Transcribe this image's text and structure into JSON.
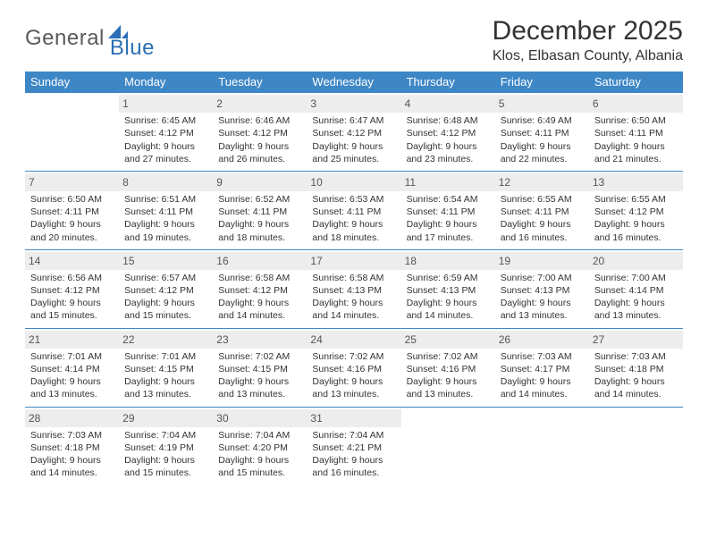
{
  "logo": {
    "word1": "General",
    "word2": "Blue",
    "brand_color": "#2a6fb5",
    "text_color": "#5a5a5a"
  },
  "title": "December 2025",
  "location": "Klos, Elbasan County, Albania",
  "colors": {
    "header_bg": "#3e87c6",
    "header_text": "#ffffff",
    "daynum_bg": "#ededed",
    "row_border": "#3e87c6",
    "body_text": "#333333",
    "page_bg": "#ffffff"
  },
  "typography": {
    "title_fontsize": 30,
    "location_fontsize": 16,
    "header_fontsize": 13,
    "cell_fontsize": 10.5,
    "daynum_fontsize": 12
  },
  "day_labels": [
    "Sunday",
    "Monday",
    "Tuesday",
    "Wednesday",
    "Thursday",
    "Friday",
    "Saturday"
  ],
  "weeks": [
    [
      {
        "num": "",
        "sunrise": "",
        "sunset": "",
        "daylight1": "",
        "daylight2": ""
      },
      {
        "num": "1",
        "sunrise": "Sunrise: 6:45 AM",
        "sunset": "Sunset: 4:12 PM",
        "daylight1": "Daylight: 9 hours",
        "daylight2": "and 27 minutes."
      },
      {
        "num": "2",
        "sunrise": "Sunrise: 6:46 AM",
        "sunset": "Sunset: 4:12 PM",
        "daylight1": "Daylight: 9 hours",
        "daylight2": "and 26 minutes."
      },
      {
        "num": "3",
        "sunrise": "Sunrise: 6:47 AM",
        "sunset": "Sunset: 4:12 PM",
        "daylight1": "Daylight: 9 hours",
        "daylight2": "and 25 minutes."
      },
      {
        "num": "4",
        "sunrise": "Sunrise: 6:48 AM",
        "sunset": "Sunset: 4:12 PM",
        "daylight1": "Daylight: 9 hours",
        "daylight2": "and 23 minutes."
      },
      {
        "num": "5",
        "sunrise": "Sunrise: 6:49 AM",
        "sunset": "Sunset: 4:11 PM",
        "daylight1": "Daylight: 9 hours",
        "daylight2": "and 22 minutes."
      },
      {
        "num": "6",
        "sunrise": "Sunrise: 6:50 AM",
        "sunset": "Sunset: 4:11 PM",
        "daylight1": "Daylight: 9 hours",
        "daylight2": "and 21 minutes."
      }
    ],
    [
      {
        "num": "7",
        "sunrise": "Sunrise: 6:50 AM",
        "sunset": "Sunset: 4:11 PM",
        "daylight1": "Daylight: 9 hours",
        "daylight2": "and 20 minutes."
      },
      {
        "num": "8",
        "sunrise": "Sunrise: 6:51 AM",
        "sunset": "Sunset: 4:11 PM",
        "daylight1": "Daylight: 9 hours",
        "daylight2": "and 19 minutes."
      },
      {
        "num": "9",
        "sunrise": "Sunrise: 6:52 AM",
        "sunset": "Sunset: 4:11 PM",
        "daylight1": "Daylight: 9 hours",
        "daylight2": "and 18 minutes."
      },
      {
        "num": "10",
        "sunrise": "Sunrise: 6:53 AM",
        "sunset": "Sunset: 4:11 PM",
        "daylight1": "Daylight: 9 hours",
        "daylight2": "and 18 minutes."
      },
      {
        "num": "11",
        "sunrise": "Sunrise: 6:54 AM",
        "sunset": "Sunset: 4:11 PM",
        "daylight1": "Daylight: 9 hours",
        "daylight2": "and 17 minutes."
      },
      {
        "num": "12",
        "sunrise": "Sunrise: 6:55 AM",
        "sunset": "Sunset: 4:11 PM",
        "daylight1": "Daylight: 9 hours",
        "daylight2": "and 16 minutes."
      },
      {
        "num": "13",
        "sunrise": "Sunrise: 6:55 AM",
        "sunset": "Sunset: 4:12 PM",
        "daylight1": "Daylight: 9 hours",
        "daylight2": "and 16 minutes."
      }
    ],
    [
      {
        "num": "14",
        "sunrise": "Sunrise: 6:56 AM",
        "sunset": "Sunset: 4:12 PM",
        "daylight1": "Daylight: 9 hours",
        "daylight2": "and 15 minutes."
      },
      {
        "num": "15",
        "sunrise": "Sunrise: 6:57 AM",
        "sunset": "Sunset: 4:12 PM",
        "daylight1": "Daylight: 9 hours",
        "daylight2": "and 15 minutes."
      },
      {
        "num": "16",
        "sunrise": "Sunrise: 6:58 AM",
        "sunset": "Sunset: 4:12 PM",
        "daylight1": "Daylight: 9 hours",
        "daylight2": "and 14 minutes."
      },
      {
        "num": "17",
        "sunrise": "Sunrise: 6:58 AM",
        "sunset": "Sunset: 4:13 PM",
        "daylight1": "Daylight: 9 hours",
        "daylight2": "and 14 minutes."
      },
      {
        "num": "18",
        "sunrise": "Sunrise: 6:59 AM",
        "sunset": "Sunset: 4:13 PM",
        "daylight1": "Daylight: 9 hours",
        "daylight2": "and 14 minutes."
      },
      {
        "num": "19",
        "sunrise": "Sunrise: 7:00 AM",
        "sunset": "Sunset: 4:13 PM",
        "daylight1": "Daylight: 9 hours",
        "daylight2": "and 13 minutes."
      },
      {
        "num": "20",
        "sunrise": "Sunrise: 7:00 AM",
        "sunset": "Sunset: 4:14 PM",
        "daylight1": "Daylight: 9 hours",
        "daylight2": "and 13 minutes."
      }
    ],
    [
      {
        "num": "21",
        "sunrise": "Sunrise: 7:01 AM",
        "sunset": "Sunset: 4:14 PM",
        "daylight1": "Daylight: 9 hours",
        "daylight2": "and 13 minutes."
      },
      {
        "num": "22",
        "sunrise": "Sunrise: 7:01 AM",
        "sunset": "Sunset: 4:15 PM",
        "daylight1": "Daylight: 9 hours",
        "daylight2": "and 13 minutes."
      },
      {
        "num": "23",
        "sunrise": "Sunrise: 7:02 AM",
        "sunset": "Sunset: 4:15 PM",
        "daylight1": "Daylight: 9 hours",
        "daylight2": "and 13 minutes."
      },
      {
        "num": "24",
        "sunrise": "Sunrise: 7:02 AM",
        "sunset": "Sunset: 4:16 PM",
        "daylight1": "Daylight: 9 hours",
        "daylight2": "and 13 minutes."
      },
      {
        "num": "25",
        "sunrise": "Sunrise: 7:02 AM",
        "sunset": "Sunset: 4:16 PM",
        "daylight1": "Daylight: 9 hours",
        "daylight2": "and 13 minutes."
      },
      {
        "num": "26",
        "sunrise": "Sunrise: 7:03 AM",
        "sunset": "Sunset: 4:17 PM",
        "daylight1": "Daylight: 9 hours",
        "daylight2": "and 14 minutes."
      },
      {
        "num": "27",
        "sunrise": "Sunrise: 7:03 AM",
        "sunset": "Sunset: 4:18 PM",
        "daylight1": "Daylight: 9 hours",
        "daylight2": "and 14 minutes."
      }
    ],
    [
      {
        "num": "28",
        "sunrise": "Sunrise: 7:03 AM",
        "sunset": "Sunset: 4:18 PM",
        "daylight1": "Daylight: 9 hours",
        "daylight2": "and 14 minutes."
      },
      {
        "num": "29",
        "sunrise": "Sunrise: 7:04 AM",
        "sunset": "Sunset: 4:19 PM",
        "daylight1": "Daylight: 9 hours",
        "daylight2": "and 15 minutes."
      },
      {
        "num": "30",
        "sunrise": "Sunrise: 7:04 AM",
        "sunset": "Sunset: 4:20 PM",
        "daylight1": "Daylight: 9 hours",
        "daylight2": "and 15 minutes."
      },
      {
        "num": "31",
        "sunrise": "Sunrise: 7:04 AM",
        "sunset": "Sunset: 4:21 PM",
        "daylight1": "Daylight: 9 hours",
        "daylight2": "and 16 minutes."
      },
      {
        "num": "",
        "sunrise": "",
        "sunset": "",
        "daylight1": "",
        "daylight2": ""
      },
      {
        "num": "",
        "sunrise": "",
        "sunset": "",
        "daylight1": "",
        "daylight2": ""
      },
      {
        "num": "",
        "sunrise": "",
        "sunset": "",
        "daylight1": "",
        "daylight2": ""
      }
    ]
  ]
}
